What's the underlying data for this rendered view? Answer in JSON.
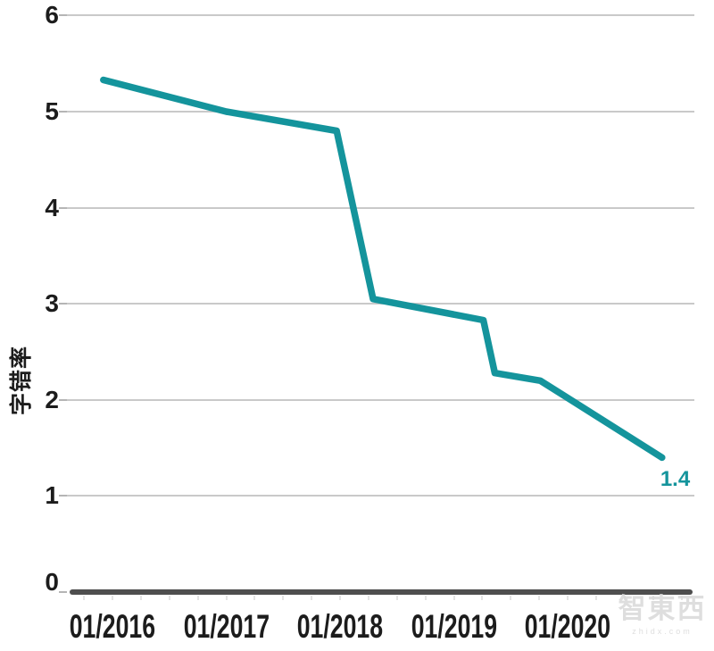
{
  "chart_data": {
    "type": "line",
    "title": "",
    "xlabel": "",
    "ylabel": "字错率",
    "ylim": [
      0,
      6
    ],
    "xlim_years": [
      2015.6,
      2021.1
    ],
    "x_unit": "decimal year (ticks shown as 01/YYYY)",
    "grid": "horizontal gridlines only, dark baseline at 0, minor quarterly ticks below axis",
    "legend": "none",
    "yticks": [
      {
        "value": 6,
        "label": "6"
      },
      {
        "value": 5,
        "label": "5"
      },
      {
        "value": 4,
        "label": "4"
      },
      {
        "value": 3,
        "label": "3"
      },
      {
        "value": 2,
        "label": "2"
      },
      {
        "value": 1,
        "label": "1"
      },
      {
        "value": 0,
        "label": "0"
      }
    ],
    "xticks": [
      {
        "year": 2016,
        "label": "01/2016"
      },
      {
        "year": 2017,
        "label": "01/2017"
      },
      {
        "year": 2018,
        "label": "01/2018"
      },
      {
        "year": 2019,
        "label": "01/2019"
      },
      {
        "year": 2020,
        "label": "01/2020"
      }
    ],
    "series": [
      {
        "name": "字错率",
        "color": "#14949C",
        "end_label": "1.4",
        "points": [
          {
            "x": 2015.92,
            "y": 5.33
          },
          {
            "x": 2017.0,
            "y": 5.0
          },
          {
            "x": 2017.97,
            "y": 4.8
          },
          {
            "x": 2018.29,
            "y": 3.05
          },
          {
            "x": 2019.26,
            "y": 2.83
          },
          {
            "x": 2019.36,
            "y": 2.28
          },
          {
            "x": 2019.76,
            "y": 2.2
          },
          {
            "x": 2020.83,
            "y": 1.4
          }
        ]
      }
    ]
  },
  "watermark": {
    "text": "智東西",
    "subtext": "zhidx.com"
  },
  "colors": {
    "line": "#14949C",
    "gridline": "#C9C9C9",
    "axis_line": "#4E4E4E",
    "label_text": "#1C1C1C",
    "end_label_text": "#14949C",
    "watermark": "#D9D9D9"
  }
}
